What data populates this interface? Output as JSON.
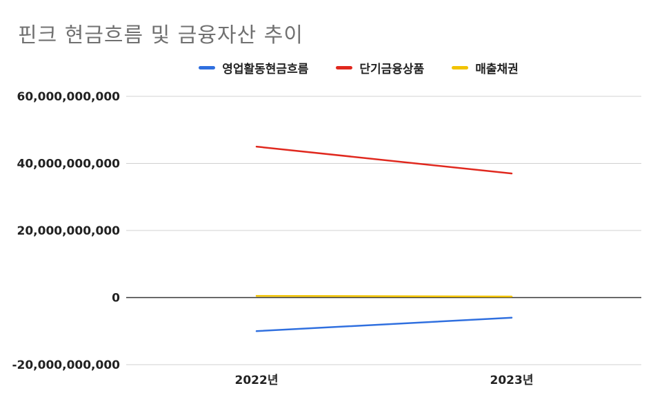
{
  "chart_data": {
    "type": "line",
    "title": "핀크 현금흐름 및 금융자산 추이",
    "categories": [
      "2022년",
      "2023년"
    ],
    "series": [
      {
        "name": "영업활동현금흐름",
        "color": "#2f6fdf",
        "values": [
          -10000000000,
          -6000000000
        ]
      },
      {
        "name": "단기금융상품",
        "color": "#e0281e",
        "values": [
          45000000000,
          37000000000
        ]
      },
      {
        "name": "매출채권",
        "color": "#f2c300",
        "values": [
          500000000,
          300000000
        ]
      }
    ],
    "ylim": [
      -20000000000,
      60000000000
    ],
    "yticks": [
      {
        "value": 60000000000,
        "label": "60,000,000,000"
      },
      {
        "value": 40000000000,
        "label": "40,000,000,000"
      },
      {
        "value": 20000000000,
        "label": "20,000,000,000"
      },
      {
        "value": 0,
        "label": "0"
      },
      {
        "value": -20000000000,
        "label": "-20,000,000,000"
      }
    ],
    "legend_position": "top",
    "grid": true
  }
}
